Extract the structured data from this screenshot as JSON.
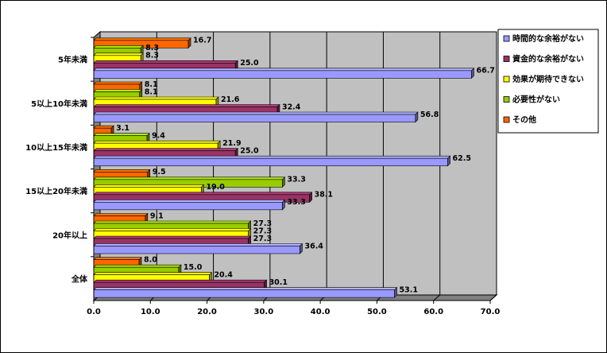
{
  "chart_data": {
    "type": "bar",
    "orientation": "horizontal",
    "title": "",
    "xlabel": "",
    "ylabel": "",
    "xlim": [
      0,
      70
    ],
    "x_ticks": [
      "0.0",
      "10.0",
      "20.0",
      "30.0",
      "40.0",
      "50.0",
      "60.0",
      "70.0"
    ],
    "grid": true,
    "legend_position": "right",
    "categories": [
      "5年未満",
      "5以上10年未満",
      "10以上15年未満",
      "15以上20年未満",
      "20年以上",
      "全体"
    ],
    "series": [
      {
        "name": "時間的な余裕がない",
        "color": "#9999ff",
        "values": [
          66.7,
          56.8,
          62.5,
          33.3,
          36.4,
          53.1
        ]
      },
      {
        "name": "資金的な余裕がない",
        "color": "#993366",
        "values": [
          25.0,
          32.4,
          25.0,
          38.1,
          27.3,
          30.1
        ]
      },
      {
        "name": "効果が期待できない",
        "color": "#ffff00",
        "values": [
          8.3,
          21.6,
          21.9,
          19.0,
          27.3,
          20.4
        ]
      },
      {
        "name": "必要性がない",
        "color": "#99cc00",
        "values": [
          8.3,
          8.1,
          9.4,
          33.3,
          27.3,
          15.0
        ]
      },
      {
        "name": "その他",
        "color": "#ff6600",
        "values": [
          16.7,
          8.1,
          3.1,
          9.5,
          9.1,
          8.0
        ]
      }
    ],
    "value_labels": [
      [
        "66.7",
        "56.8",
        "62.5",
        "33.3",
        "36.4",
        "53.1"
      ],
      [
        "25.0",
        "32.4",
        "25.0",
        "38.1",
        "27.3",
        "30.1"
      ],
      [
        "8.3",
        "21.6",
        "21.9",
        "19.0",
        "27.3",
        "20.4"
      ],
      [
        "8.3",
        "8.1",
        "9.4",
        "33.3",
        "27.3",
        "15.0"
      ],
      [
        "16.7",
        "8.1",
        "3.1",
        "9.5",
        "9.1",
        "8.0"
      ]
    ]
  },
  "colors": {
    "plot_back": "#c0c0c0",
    "plot_side": "#808080",
    "grid": "#000000"
  }
}
